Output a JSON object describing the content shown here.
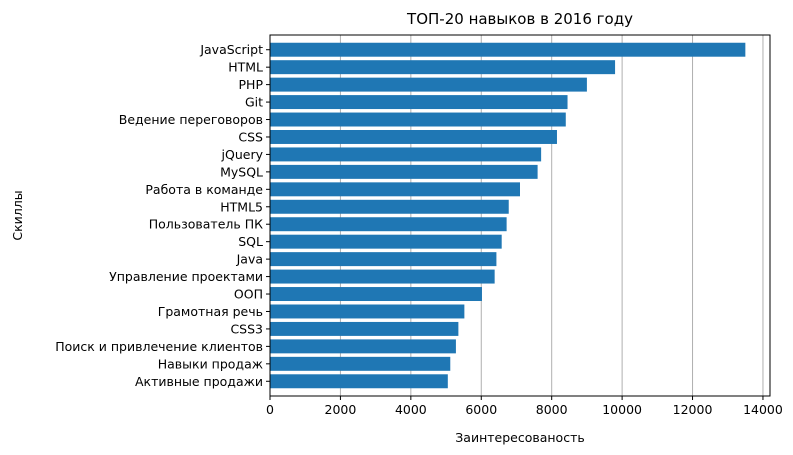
{
  "chart_data": {
    "type": "bar",
    "orientation": "horizontal",
    "title": "ТОП-20 навыков в 2016 году",
    "xlabel": "Заинтересованость",
    "ylabel": "Скиллы",
    "xlim": [
      0,
      14200
    ],
    "xticks": [
      0,
      2000,
      4000,
      6000,
      8000,
      10000,
      12000,
      14000
    ],
    "grid": "x",
    "bar_color": "#1f77b4",
    "grid_color": "#b0b0b0",
    "categories": [
      "JavaScript",
      "HTML",
      "PHP",
      "Git",
      "Ведение переговоров",
      "CSS",
      "jQuery",
      "MySQL",
      "Работа в команде",
      "HTML5",
      "Пользователь ПК",
      "SQL",
      "Java",
      "Управление проектами",
      "ООП",
      "Грамотная речь",
      "CSS3",
      "Поиск и привлечение клиентов",
      "Навыки продаж",
      "Активные продажи"
    ],
    "values": [
      13500,
      9800,
      9000,
      8450,
      8400,
      8150,
      7700,
      7600,
      7100,
      6780,
      6720,
      6580,
      6430,
      6380,
      6020,
      5520,
      5350,
      5280,
      5120,
      5050
    ]
  }
}
